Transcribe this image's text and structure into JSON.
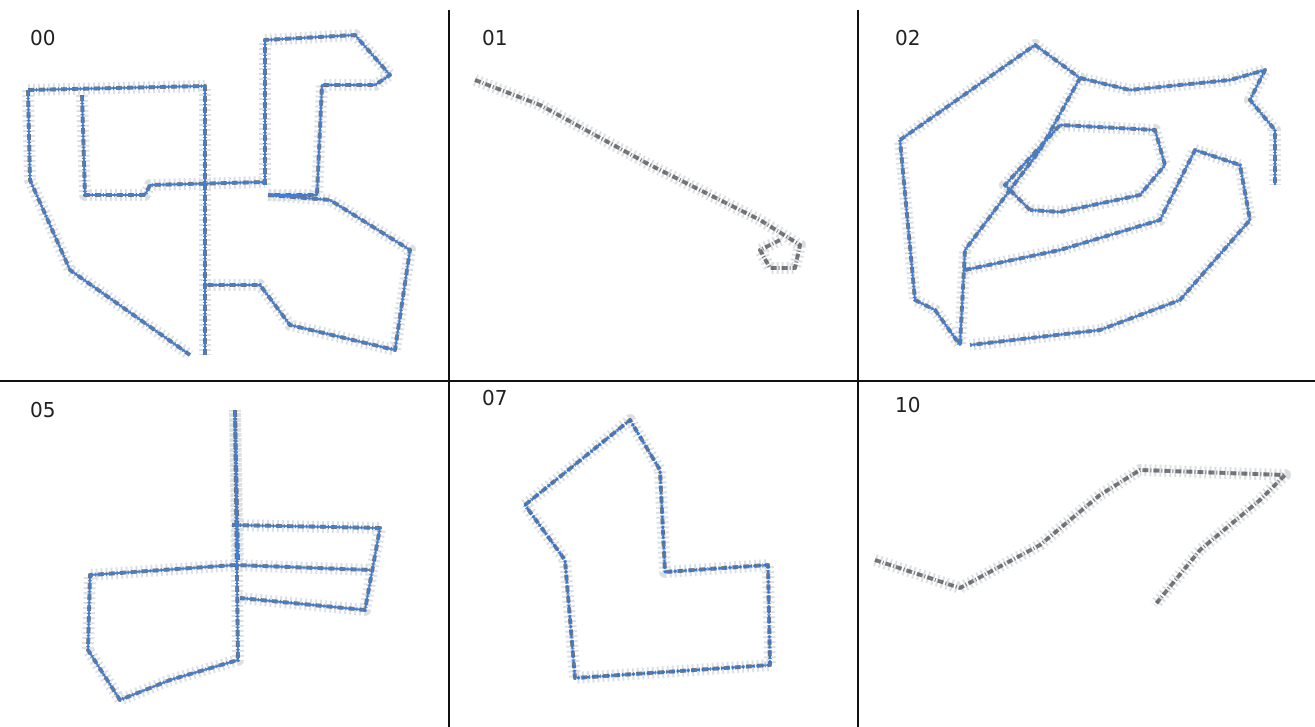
{
  "panels": [
    {
      "label": "00"
    },
    {
      "label": "01"
    },
    {
      "label": "02"
    },
    {
      "label": "05"
    },
    {
      "label": "07"
    },
    {
      "label": "10"
    }
  ]
}
